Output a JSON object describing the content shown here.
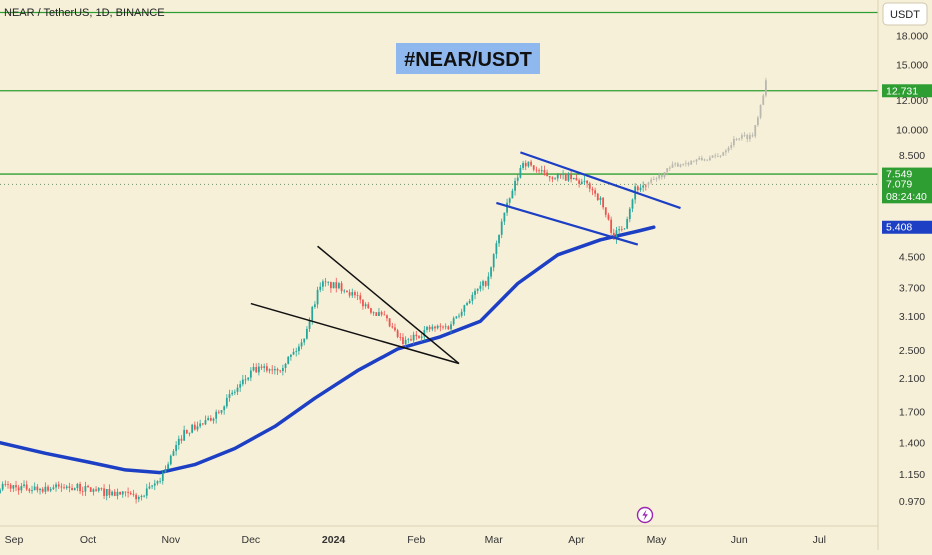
{
  "header": {
    "symbol_line": "NEAR / TetherUS, 1D, BINANCE",
    "currency": "USDT"
  },
  "annotation": {
    "title": "#NEAR/USDT",
    "title_bg": "#8fb8ee"
  },
  "lightning_icon": "lightning-icon",
  "colors": {
    "background": "#f7f0d9",
    "candle_up": "#26a69a",
    "candle_down": "#ef5350",
    "ma_line": "#1c3fc4",
    "level_line": "#2e9e32",
    "projection": "#b8b8ae"
  },
  "chart_data": {
    "type": "candlestick",
    "scale": "log",
    "ylim": [
      0.83,
      22.5
    ],
    "y_ticks": [
      {
        "value": 18.0,
        "label": "18.000"
      },
      {
        "value": 15.0,
        "label": "15.000"
      },
      {
        "value": 12.0,
        "label": "12.000"
      },
      {
        "value": 10.0,
        "label": "10.000"
      },
      {
        "value": 8.5,
        "label": "8.500"
      },
      {
        "value": 4.5,
        "label": "4.500"
      },
      {
        "value": 3.7,
        "label": "3.700"
      },
      {
        "value": 3.1,
        "label": "3.100"
      },
      {
        "value": 2.5,
        "label": "2.500"
      },
      {
        "value": 2.1,
        "label": "2.100"
      },
      {
        "value": 1.7,
        "label": "1.700"
      },
      {
        "value": 1.4,
        "label": "1.400"
      },
      {
        "value": 1.15,
        "label": "1.150"
      },
      {
        "value": 0.97,
        "label": "0.970"
      }
    ],
    "x_axis": {
      "start": "2023-08-29",
      "end": "2024-07-23",
      "ticks": [
        {
          "date": "2023-09-01",
          "label": "Sep",
          "bold": false
        },
        {
          "date": "2023-10-01",
          "label": "Oct",
          "bold": false
        },
        {
          "date": "2023-11-01",
          "label": "Nov",
          "bold": false
        },
        {
          "date": "2023-12-01",
          "label": "Dec",
          "bold": false
        },
        {
          "date": "2024-01-01",
          "label": "2024",
          "bold": true
        },
        {
          "date": "2024-02-01",
          "label": "Feb",
          "bold": false
        },
        {
          "date": "2024-03-01",
          "label": "Mar",
          "bold": false
        },
        {
          "date": "2024-04-01",
          "label": "Apr",
          "bold": false
        },
        {
          "date": "2024-05-01",
          "label": "May",
          "bold": false
        },
        {
          "date": "2024-06-01",
          "label": "Jun",
          "bold": false
        },
        {
          "date": "2024-07-01",
          "label": "Jul",
          "bold": false
        }
      ]
    },
    "price_path": [
      {
        "date": "2023-08-29",
        "close": 1.07
      },
      {
        "date": "2023-09-10",
        "close": 1.05
      },
      {
        "date": "2023-09-25",
        "close": 1.06
      },
      {
        "date": "2023-10-10",
        "close": 1.02
      },
      {
        "date": "2023-10-21",
        "close": 0.99
      },
      {
        "date": "2023-10-28",
        "close": 1.12
      },
      {
        "date": "2023-11-06",
        "close": 1.5
      },
      {
        "date": "2023-11-15",
        "close": 1.6
      },
      {
        "date": "2023-11-24",
        "close": 1.9
      },
      {
        "date": "2023-12-02",
        "close": 2.2
      },
      {
        "date": "2023-12-12",
        "close": 2.25
      },
      {
        "date": "2023-12-20",
        "close": 2.6
      },
      {
        "date": "2023-12-27",
        "close": 3.8
      },
      {
        "date": "2024-01-05",
        "close": 3.7
      },
      {
        "date": "2024-01-12",
        "close": 3.35
      },
      {
        "date": "2024-01-20",
        "close": 3.05
      },
      {
        "date": "2024-01-27",
        "close": 2.6
      },
      {
        "date": "2024-02-05",
        "close": 2.85
      },
      {
        "date": "2024-02-13",
        "close": 2.9
      },
      {
        "date": "2024-02-20",
        "close": 3.4
      },
      {
        "date": "2024-02-28",
        "close": 3.9
      },
      {
        "date": "2024-03-04",
        "close": 5.6
      },
      {
        "date": "2024-03-12",
        "close": 8.2
      },
      {
        "date": "2024-03-20",
        "close": 7.5
      },
      {
        "date": "2024-03-28",
        "close": 7.4
      },
      {
        "date": "2024-04-06",
        "close": 7.0
      },
      {
        "date": "2024-04-10",
        "close": 6.4
      },
      {
        "date": "2024-04-15",
        "close": 5.1
      },
      {
        "date": "2024-04-19",
        "close": 5.5
      },
      {
        "date": "2024-04-23",
        "close": 6.9
      },
      {
        "date": "2024-04-28",
        "close": 7.079
      }
    ],
    "projection_path": [
      {
        "date": "2024-04-28",
        "close": 7.1
      },
      {
        "date": "2024-05-08",
        "close": 8.0
      },
      {
        "date": "2024-05-15",
        "close": 8.2
      },
      {
        "date": "2024-05-24",
        "close": 8.4
      },
      {
        "date": "2024-05-31",
        "close": 9.5
      },
      {
        "date": "2024-06-06",
        "close": 9.6
      },
      {
        "date": "2024-06-10",
        "close": 12.5
      },
      {
        "date": "2024-06-12",
        "close": 15.3
      }
    ],
    "moving_average": [
      {
        "date": "2023-08-29",
        "value": 1.4
      },
      {
        "date": "2023-09-15",
        "value": 1.31
      },
      {
        "date": "2023-10-01",
        "value": 1.24
      },
      {
        "date": "2023-10-15",
        "value": 1.18
      },
      {
        "date": "2023-10-28",
        "value": 1.16
      },
      {
        "date": "2023-11-10",
        "value": 1.22
      },
      {
        "date": "2023-11-25",
        "value": 1.35
      },
      {
        "date": "2023-12-10",
        "value": 1.55
      },
      {
        "date": "2023-12-25",
        "value": 1.85
      },
      {
        "date": "2024-01-10",
        "value": 2.2
      },
      {
        "date": "2024-01-25",
        "value": 2.52
      },
      {
        "date": "2024-02-10",
        "value": 2.72
      },
      {
        "date": "2024-02-25",
        "value": 3.0
      },
      {
        "date": "2024-03-10",
        "value": 3.8
      },
      {
        "date": "2024-03-25",
        "value": 4.55
      },
      {
        "date": "2024-04-10",
        "value": 5.0
      },
      {
        "date": "2024-04-25",
        "value": 5.3
      },
      {
        "date": "2024-04-30",
        "value": 5.41
      }
    ],
    "horizontal_levels": [
      {
        "value": 20.8,
        "label": ""
      },
      {
        "value": 12.731,
        "label": "12.731"
      },
      {
        "value": 7.549,
        "label": "7.549"
      }
    ],
    "dotted_levels": [
      {
        "value": 7.079
      }
    ],
    "trend_lines": [
      {
        "color": "#111111",
        "from": {
          "date": "2023-12-26",
          "value": 4.8
        },
        "to": {
          "date": "2024-02-17",
          "value": 2.3
        }
      },
      {
        "color": "#111111",
        "from": {
          "date": "2023-12-01",
          "value": 3.35
        },
        "to": {
          "date": "2024-02-17",
          "value": 2.3
        }
      },
      {
        "color": "#1c3fc4",
        "from": {
          "date": "2024-03-11",
          "value": 8.65
        },
        "to": {
          "date": "2024-05-10",
          "value": 6.1
        }
      },
      {
        "color": "#1c3fc4",
        "from": {
          "date": "2024-03-02",
          "value": 6.3
        },
        "to": {
          "date": "2024-04-24",
          "value": 4.85
        }
      }
    ],
    "price_labels": [
      {
        "value": 12.731,
        "label": "12.731",
        "bg": "#2e9e32"
      },
      {
        "value": 7.549,
        "label": "7.549",
        "bg": "#2e9e32"
      },
      {
        "value": 7.079,
        "label": "7.079",
        "sublabel": "08:24:40",
        "bg": "#2e9e32"
      },
      {
        "value": 5.408,
        "label": "5.408",
        "bg": "#1c3fc4"
      }
    ]
  }
}
